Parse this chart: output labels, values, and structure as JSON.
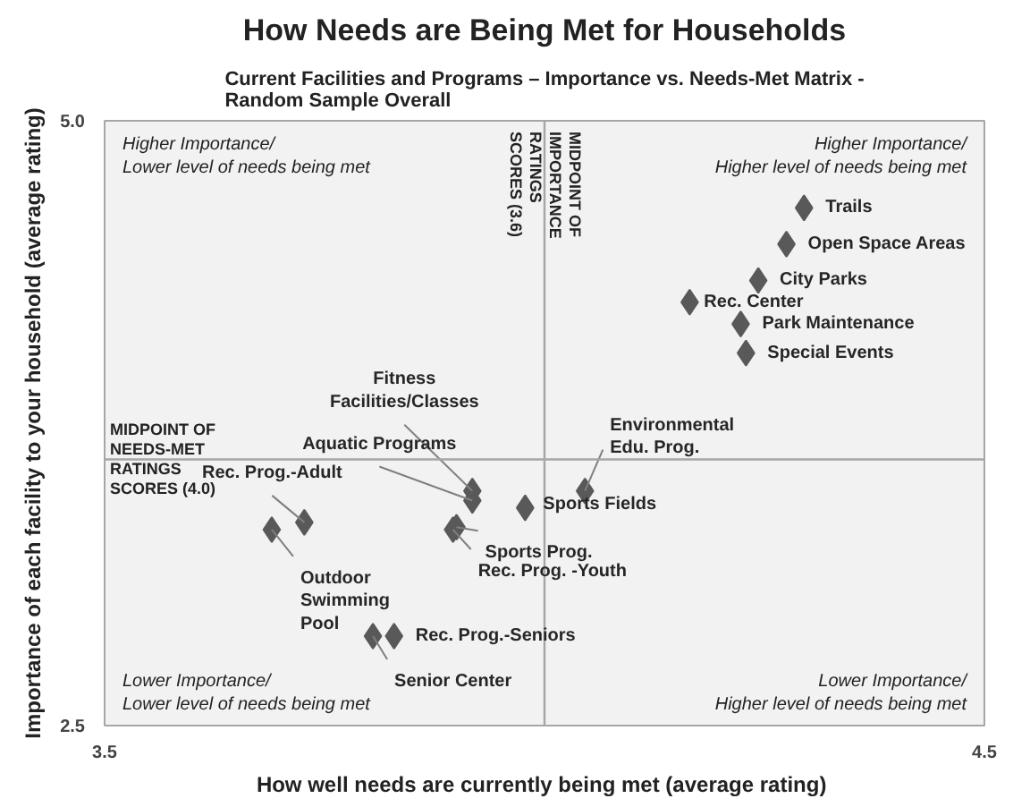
{
  "chart_data": {
    "type": "scatter",
    "title": "How Needs are Being Met for Households",
    "subtitle": "Current Facilities and Programs – Importance vs. Needs-Met Matrix - Random Sample Overall",
    "xlabel": "How well needs are currently being met  (average rating)",
    "ylabel": "Importance of each facility to your household (average rating)",
    "x": [
      4.295,
      4.275,
      4.243,
      4.165,
      4.223,
      4.229,
      3.918,
      3.918,
      3.978,
      4.046,
      3.9,
      3.896,
      3.727,
      3.69,
      3.829,
      3.805
    ],
    "series": [
      {
        "color": "#595959",
        "values": [
          4.64,
          4.49,
          4.34,
          4.25,
          4.16,
          4.04,
          3.47,
          3.43,
          3.4,
          3.47,
          3.32,
          3.31,
          3.34,
          3.31,
          2.87,
          2.87
        ]
      }
    ],
    "xlim": [
      3.5,
      4.5
    ],
    "ylim": [
      2.5,
      5.0
    ],
    "xticks": [
      3.5,
      4.5
    ],
    "yticks": [
      2.5,
      {
        "value": 5.0,
        "label": "5.0"
      }
    ],
    "marker": "diamond",
    "ref_lines": [
      {
        "axis": "x",
        "value": 4.0,
        "label": "MIDPOINT OF IMPORTANCE RATINGS SCORES (3.6)",
        "color": "#a6a6a6"
      },
      {
        "axis": "y",
        "value": 3.6,
        "label": "MIDPOINT OF NEEDS-MET RATINGS SCORES (4.0)",
        "color": "#a6a6a6"
      }
    ],
    "annotations": [
      {
        "text": "Trails",
        "x": 4.295,
        "y": 4.64
      },
      {
        "text": "Open Space Areas",
        "x": 4.275,
        "y": 4.49
      },
      {
        "text": "City Parks",
        "x": 4.243,
        "y": 4.34
      },
      {
        "text": "Rec. Center",
        "x": 4.165,
        "y": 4.25
      },
      {
        "text": "Park Maintenance",
        "x": 4.223,
        "y": 4.16
      },
      {
        "text": "Special Events",
        "x": 4.229,
        "y": 4.04
      },
      {
        "text": "Fitness Facilities/Classes",
        "x": 3.918,
        "y": 3.47
      },
      {
        "text": "Aquatic Programs",
        "x": 3.918,
        "y": 3.43
      },
      {
        "text": "Sports Fields",
        "x": 3.978,
        "y": 3.4
      },
      {
        "text": "Environmental Edu. Prog.",
        "x": 4.046,
        "y": 3.47
      },
      {
        "text": "Sports Prog.",
        "x": 3.9,
        "y": 3.32
      },
      {
        "text": "Rec. Prog. -Youth",
        "x": 3.896,
        "y": 3.31
      },
      {
        "text": "Rec. Prog.-Adult",
        "x": 3.727,
        "y": 3.34
      },
      {
        "text": "Outdoor Swimming Pool",
        "x": 3.69,
        "y": 3.31
      },
      {
        "text": "Rec. Prog.-Seniors",
        "x": 3.829,
        "y": 2.87
      },
      {
        "text": "Senior Center",
        "x": 3.805,
        "y": 2.87
      },
      "Higher Importance/ Lower level of needs being met",
      "Higher Importance/ Higher level of needs being met",
      "Lower Importance/ Lower level of needs being met",
      "Lower Importance/ Higher level of needs being met"
    ]
  }
}
